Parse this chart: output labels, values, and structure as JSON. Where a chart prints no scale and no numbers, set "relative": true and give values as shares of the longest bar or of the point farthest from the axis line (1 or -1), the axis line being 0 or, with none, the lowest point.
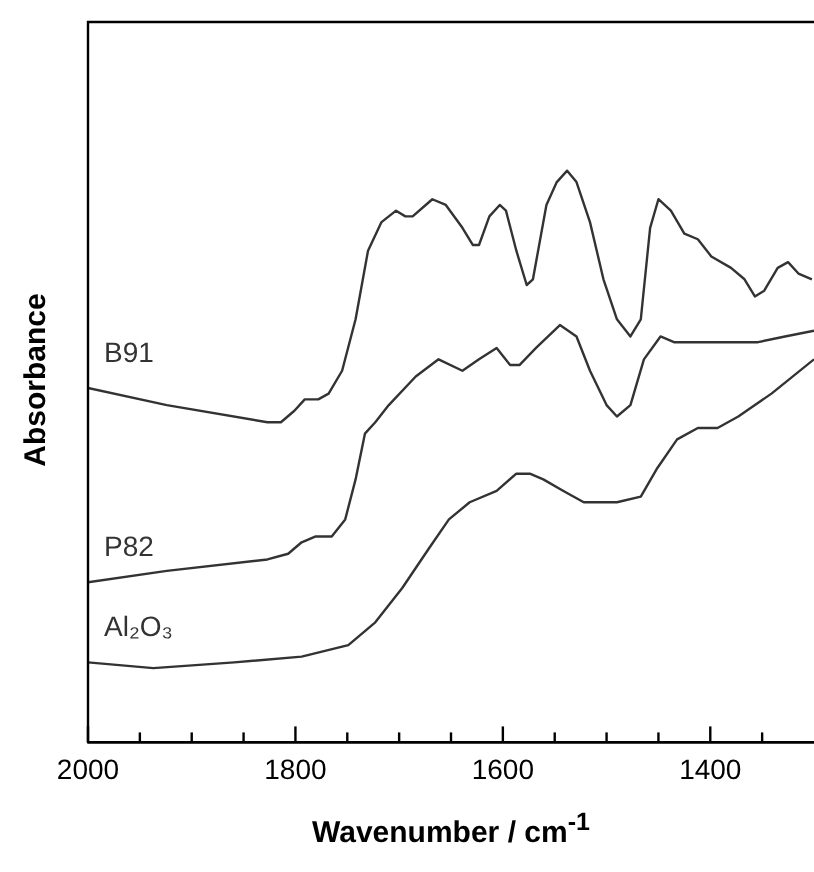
{
  "chart_data": {
    "type": "line",
    "xlabel": "Wavenumber / cm$^{-1}$",
    "ylabel": "Absorbance",
    "relative": true,
    "xlim": [
      2000,
      1300
    ],
    "xticks": [
      2000,
      {
        "value": 1950,
        "label": null
      },
      {
        "value": 1900,
        "label": null
      },
      {
        "value": 1850,
        "label": null
      },
      1800,
      {
        "value": 1750,
        "label": null
      },
      {
        "value": 1700,
        "label": null
      },
      {
        "value": 1650,
        "label": null
      },
      1600,
      {
        "value": 1550,
        "label": null
      },
      {
        "value": 1500,
        "label": null
      },
      {
        "value": 1450,
        "label": null
      },
      1400,
      {
        "value": 1350,
        "label": null
      }
    ],
    "grid": false,
    "legend": false,
    "marker": "none",
    "line_style": "solid",
    "series": [
      {
        "name": "B91",
        "color": "#333333",
        "x": [
          2000,
          1924,
          1827,
          1814,
          1801,
          1791,
          1778,
          1768,
          1755,
          1742,
          1730,
          1717,
          1703,
          1694,
          1687,
          1668,
          1655,
          1639,
          1629,
          1623,
          1613,
          1603,
          1597,
          1587,
          1577,
          1571,
          1558,
          1548,
          1538,
          1529,
          1516,
          1503,
          1490,
          1477,
          1467,
          1458,
          1450,
          1438,
          1425,
          1412,
          1399,
          1380,
          1367,
          1357,
          1348,
          1335,
          1325,
          1315,
          1302
        ],
        "values": [
          0.62,
          0.59,
          0.56,
          0.56,
          0.58,
          0.6,
          0.6,
          0.61,
          0.65,
          0.74,
          0.86,
          0.91,
          0.93,
          0.92,
          0.92,
          0.95,
          0.94,
          0.9,
          0.87,
          0.87,
          0.92,
          0.94,
          0.93,
          0.86,
          0.8,
          0.81,
          0.94,
          0.98,
          1.0,
          0.98,
          0.91,
          0.81,
          0.74,
          0.71,
          0.74,
          0.9,
          0.95,
          0.93,
          0.89,
          0.88,
          0.85,
          0.83,
          0.81,
          0.78,
          0.79,
          0.83,
          0.84,
          0.82,
          0.81
        ]
      },
      {
        "name": "P82",
        "color": "#333333",
        "x": [
          2000,
          1924,
          1827,
          1807,
          1794,
          1781,
          1765,
          1752,
          1742,
          1733,
          1723,
          1710,
          1684,
          1662,
          1639,
          1623,
          1606,
          1593,
          1584,
          1568,
          1545,
          1529,
          1516,
          1500,
          1490,
          1477,
          1464,
          1448,
          1435,
          1425,
          1386,
          1354,
          1328,
          1300
        ],
        "values": [
          0.28,
          0.3,
          0.32,
          0.33,
          0.35,
          0.36,
          0.36,
          0.39,
          0.46,
          0.54,
          0.56,
          0.59,
          0.64,
          0.67,
          0.65,
          0.67,
          0.69,
          0.66,
          0.66,
          0.69,
          0.73,
          0.71,
          0.65,
          0.59,
          0.57,
          0.59,
          0.67,
          0.71,
          0.7,
          0.7,
          0.7,
          0.7,
          0.71,
          0.72
        ]
      },
      {
        "name": "Al₂O₃",
        "color": "#333333",
        "x": [
          2000,
          1937,
          1859,
          1794,
          1749,
          1723,
          1697,
          1671,
          1652,
          1632,
          1606,
          1587,
          1574,
          1561,
          1542,
          1522,
          1490,
          1467,
          1451,
          1432,
          1412,
          1393,
          1373,
          1341,
          1300
        ],
        "values": [
          0.14,
          0.13,
          0.14,
          0.15,
          0.17,
          0.21,
          0.27,
          0.34,
          0.39,
          0.42,
          0.44,
          0.47,
          0.47,
          0.46,
          0.44,
          0.42,
          0.42,
          0.43,
          0.48,
          0.53,
          0.55,
          0.55,
          0.57,
          0.61,
          0.67
        ]
      }
    ]
  }
}
